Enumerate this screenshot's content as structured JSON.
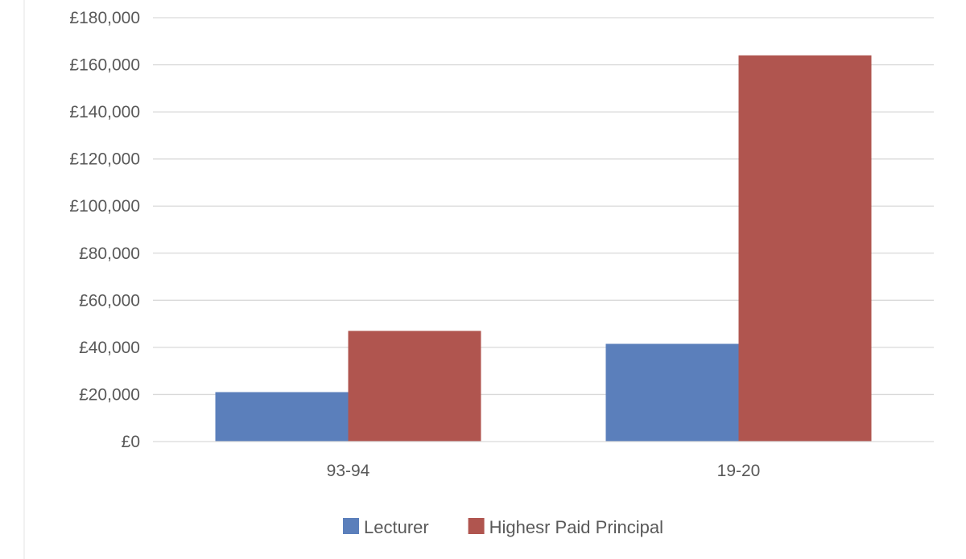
{
  "chart_data": {
    "type": "bar",
    "categories": [
      "93-94",
      "19-20"
    ],
    "series": [
      {
        "name": "Lecturer",
        "values": [
          21000,
          41500
        ],
        "color": "#5b7fbb"
      },
      {
        "name": "Highesr Paid Principal",
        "values": [
          47000,
          164000
        ],
        "color": "#b0554f"
      }
    ],
    "ylim": [
      0,
      180000
    ],
    "ytick_values": [
      0,
      20000,
      40000,
      60000,
      80000,
      100000,
      120000,
      140000,
      160000,
      180000
    ],
    "ytick_labels": [
      "£0",
      "£20,000",
      "£40,000",
      "£60,000",
      "£80,000",
      "£100,000",
      "£120,000",
      "£140,000",
      "£160,000",
      "£180,000"
    ],
    "grid": true,
    "legend": "bottom",
    "title": "",
    "xlabel": "",
    "ylabel": ""
  }
}
